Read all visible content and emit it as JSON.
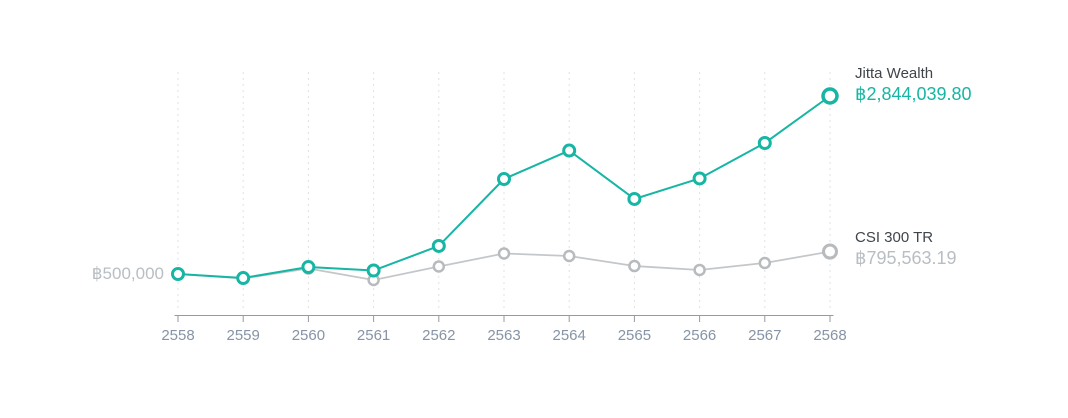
{
  "colors": {
    "jitta_series": "#17b5a4",
    "benchmark_line": "#c4c7ca",
    "benchmark_marker": "#b7bbbe",
    "grid_line": "#dfe1e3",
    "axis_line": "#949aa2",
    "tick_label": "#8694a5",
    "series_name_text": "#3f454b",
    "muted_value_text": "#b9bec3"
  },
  "chart_data": {
    "type": "line",
    "title": "",
    "x": [
      2558,
      2559,
      2560,
      2561,
      2562,
      2563,
      2564,
      2565,
      2566,
      2567,
      2568
    ],
    "series": [
      {
        "name": "Jitta Wealth",
        "display_value": "฿2,844,039.80",
        "values": [
          500000,
          447000,
          592000,
          546000,
          869000,
          1751000,
          2126000,
          1488000,
          1758000,
          2225000,
          2844039.8
        ]
      },
      {
        "name": "CSI 300 TR",
        "display_value": "฿795,563.19",
        "values": [
          500000,
          441000,
          572000,
          421000,
          599000,
          770000,
          737000,
          605000,
          553000,
          645000,
          795563.19
        ]
      }
    ],
    "start_label": "฿500,000",
    "baseline_value": 500000,
    "ylim": [
      421000,
      2844039.8
    ],
    "grid": "vertical-dashed",
    "legend_position": "right-of-last-point",
    "xlabel": "",
    "ylabel": ""
  }
}
